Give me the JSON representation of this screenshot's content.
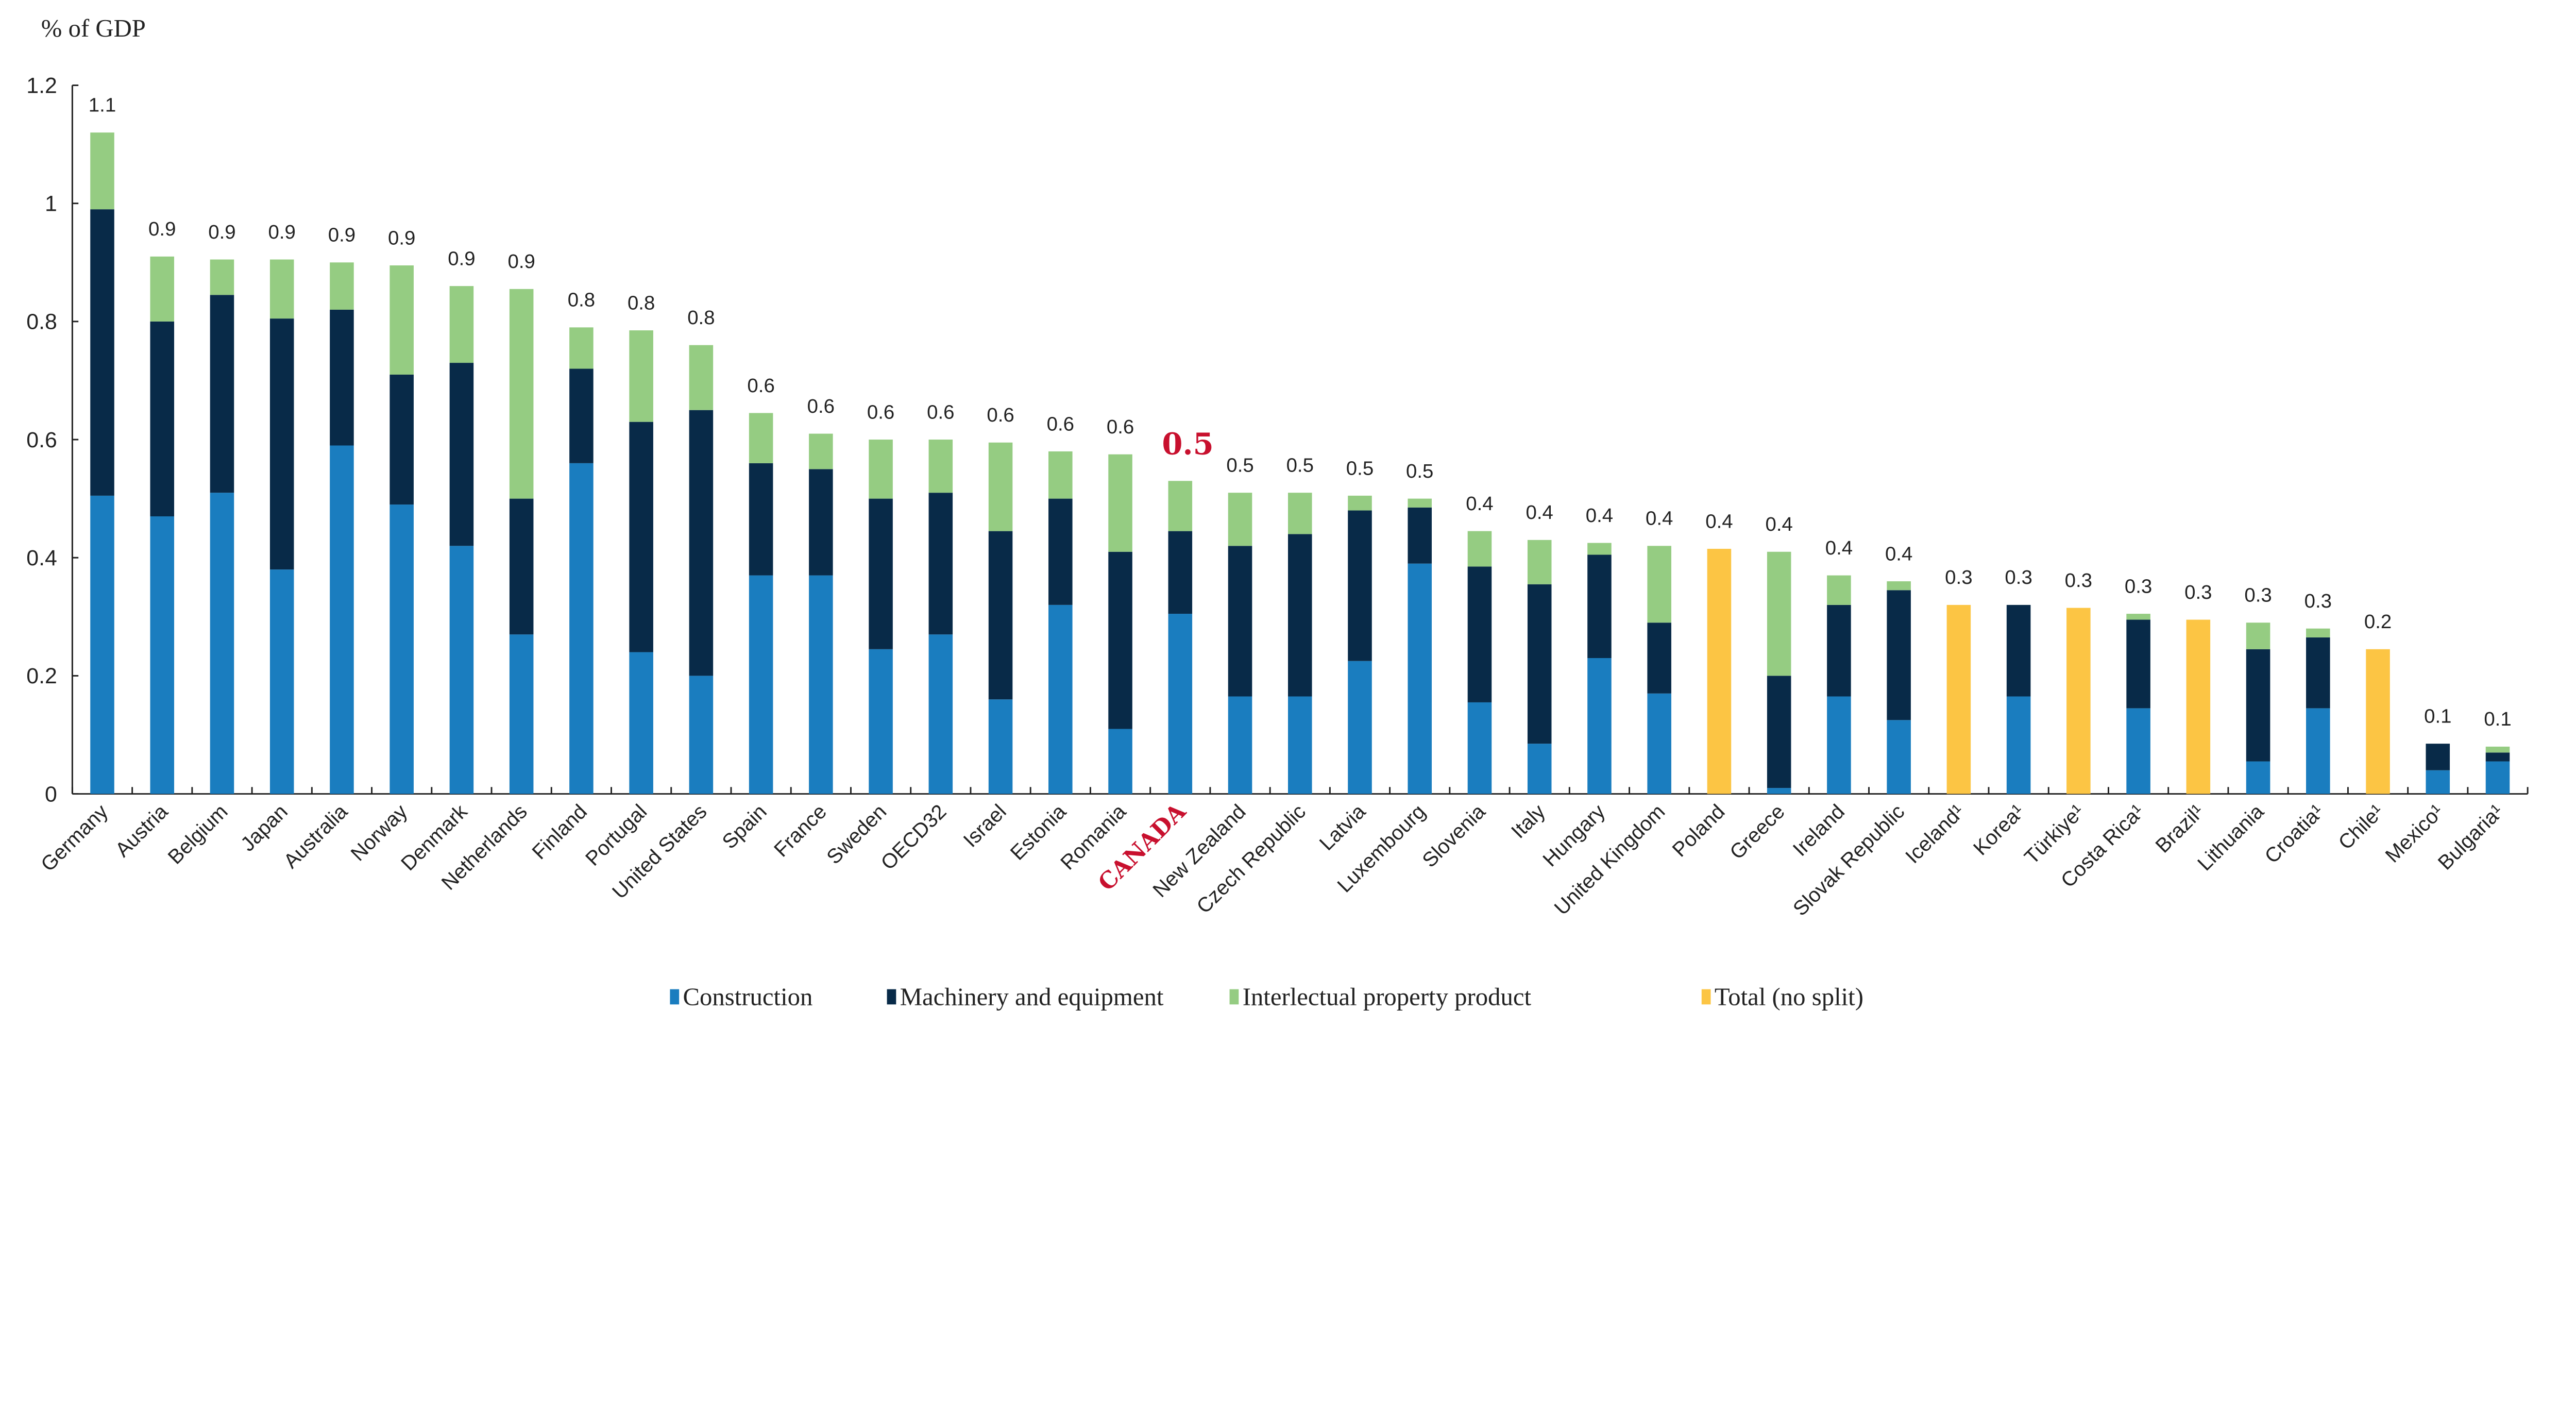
{
  "chart_data": {
    "type": "bar",
    "stacked": true,
    "ylabel": "% of GDP",
    "ylim": [
      0,
      1.2
    ],
    "yticks": [
      "0",
      "0.2",
      "0.4",
      "0.6",
      "0.8",
      "1",
      "1.2"
    ],
    "grid": false,
    "legend_position": "bottom",
    "highlight_category": "CANADA",
    "highlight_color": "#c8102e",
    "categories": [
      "Germany",
      "Austria",
      "Belgium",
      "Japan",
      "Australia",
      "Norway",
      "Denmark",
      "Netherlands",
      "Finland",
      "Portugal",
      "United States",
      "Spain",
      "France",
      "Sweden",
      "OECD32",
      "Israel",
      "Estonia",
      "Romania",
      "CANADA",
      "New Zealand",
      "Czech Republic",
      "Latvia",
      "Luxembourg",
      "Slovenia",
      "Italy",
      "Hungary",
      "United Kingdom",
      "Poland",
      "Greece",
      "Ireland",
      "Slovak Republic",
      "Iceland¹",
      "Korea¹",
      "Türkiye¹",
      "Costa Rica¹",
      "Brazil¹",
      "Lithuania",
      "Croatia¹",
      "Chile¹",
      "Mexico¹",
      "Bulgaria¹"
    ],
    "data_labels": [
      "1.1",
      "0.9",
      "0.9",
      "0.9",
      "0.9",
      "0.9",
      "0.9",
      "0.9",
      "0.8",
      "0.8",
      "0.8",
      "0.6",
      "0.6",
      "0.6",
      "0.6",
      "0.6",
      "0.6",
      "0.6",
      "0.5",
      "0.5",
      "0.5",
      "0.5",
      "0.5",
      "0.4",
      "0.4",
      "0.4",
      "0.4",
      "0.4",
      "0.4",
      "0.4",
      "0.4",
      "0.3",
      "0.3",
      "0.3",
      "0.3",
      "0.3",
      "0.3",
      "0.3",
      "0.2",
      "0.1",
      "0.1"
    ],
    "series": [
      {
        "name": "Construction",
        "color": "#1a7dbf",
        "values": [
          0.505,
          0.47,
          0.51,
          0.38,
          0.59,
          0.49,
          0.42,
          0.27,
          0.56,
          0.24,
          0.2,
          0.37,
          0.37,
          0.245,
          0.27,
          0.16,
          0.32,
          0.11,
          0.305,
          0.165,
          0.165,
          0.225,
          0.39,
          0.155,
          0.085,
          0.23,
          0.17,
          0,
          0.01,
          0.165,
          0.125,
          0,
          0.165,
          0,
          0.145,
          0,
          0.055,
          0.145,
          0,
          0.04,
          0.055
        ]
      },
      {
        "name": "Machinery and equipment",
        "color": "#082a48",
        "values": [
          0.485,
          0.33,
          0.335,
          0.425,
          0.23,
          0.22,
          0.31,
          0.23,
          0.16,
          0.39,
          0.45,
          0.19,
          0.18,
          0.255,
          0.24,
          0.285,
          0.18,
          0.3,
          0.14,
          0.255,
          0.275,
          0.255,
          0.095,
          0.23,
          0.27,
          0.175,
          0.12,
          0,
          0.19,
          0.155,
          0.22,
          0,
          0.155,
          0,
          0.15,
          0,
          0.19,
          0.12,
          0,
          0.045,
          0.015
        ]
      },
      {
        "name": "Interlectual property product",
        "color": "#95cc82",
        "values": [
          0.13,
          0.11,
          0.06,
          0.1,
          0.08,
          0.185,
          0.13,
          0.355,
          0.07,
          0.155,
          0.11,
          0.085,
          0.06,
          0.1,
          0.09,
          0.15,
          0.08,
          0.165,
          0.085,
          0.09,
          0.07,
          0.025,
          0.015,
          0.06,
          0.075,
          0.02,
          0.13,
          0,
          0.21,
          0.05,
          0.015,
          0,
          0,
          0,
          0.01,
          0,
          0.045,
          0.015,
          0,
          0,
          0.01
        ]
      },
      {
        "name": "Total (no split)",
        "color": "#fcc544",
        "values": [
          0,
          0,
          0,
          0,
          0,
          0,
          0,
          0,
          0,
          0,
          0,
          0,
          0,
          0,
          0,
          0,
          0,
          0,
          0,
          0,
          0,
          0,
          0,
          0,
          0,
          0,
          0,
          0.415,
          0,
          0,
          0,
          0.32,
          0,
          0.315,
          0,
          0.295,
          0,
          0,
          0.245,
          0,
          0
        ]
      }
    ]
  }
}
